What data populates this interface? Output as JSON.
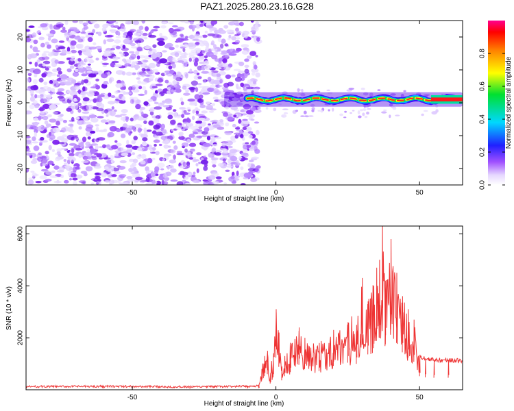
{
  "figure_title": "PAZ1.2025.280.23.16.G28",
  "chart_data": [
    {
      "type": "heatmap",
      "title": "PAZ1.2025.280.23.16.G28",
      "xlabel": "Height of straight line (km)",
      "ylabel": "Frequency (Hz)",
      "xlim": [
        -87,
        65
      ],
      "ylim": [
        -25,
        25
      ],
      "xticks": [
        -50,
        0,
        50
      ],
      "yticks": [
        -20,
        -10,
        0,
        10,
        20
      ],
      "colorbar": {
        "label": "Normalized spectral amplitude",
        "range": [
          0.0,
          1.0
        ],
        "ticks": [
          0.0,
          0.2,
          0.4,
          0.6,
          0.8
        ],
        "tick_labels": [
          "0.0",
          "0.2",
          "0.4",
          "0.6",
          "0.8"
        ],
        "colormap": [
          "#ffffff",
          "#d9c2ff",
          "#8b2cf5",
          "#1010ff",
          "#00d8ff",
          "#00e040",
          "#ffff00",
          "#ff8000",
          "#ff0000",
          "#ff0080"
        ]
      },
      "description_regions": {
        "noise_region_km": [
          -87,
          -8
        ],
        "signal_trace_km": [
          -18,
          65
        ],
        "signal_frequency_hz": 1
      }
    },
    {
      "type": "line",
      "xlabel": "Height of straight line (km)",
      "ylabel": "SNR (10 * v/v)",
      "xlim": [
        -87,
        65
      ],
      "ylim": [
        0,
        6300
      ],
      "xticks": [
        -50,
        0,
        50
      ],
      "yticks": [
        2000,
        4000,
        6000
      ],
      "color": "#ee3333",
      "series": [
        {
          "name": "SNR",
          "x": [
            -87,
            -60,
            -30,
            -10,
            -6,
            -5,
            -4,
            -3,
            -2,
            -1,
            0,
            1,
            2,
            3,
            5,
            8,
            10,
            15,
            20,
            25,
            28,
            30,
            32,
            34,
            35,
            36,
            37,
            38,
            40,
            42,
            44,
            46,
            48,
            50,
            52,
            55,
            60,
            65
          ],
          "values": [
            120,
            130,
            110,
            130,
            150,
            800,
            1300,
            1500,
            600,
            1200,
            3100,
            2200,
            900,
            1300,
            1700,
            2400,
            2000,
            1800,
            2300,
            2600,
            2500,
            4300,
            3400,
            4000,
            4700,
            5000,
            6300,
            4200,
            5800,
            4500,
            3600,
            3100,
            2700,
            1300,
            1200,
            1150,
            1150,
            1100
          ]
        }
      ]
    }
  ]
}
